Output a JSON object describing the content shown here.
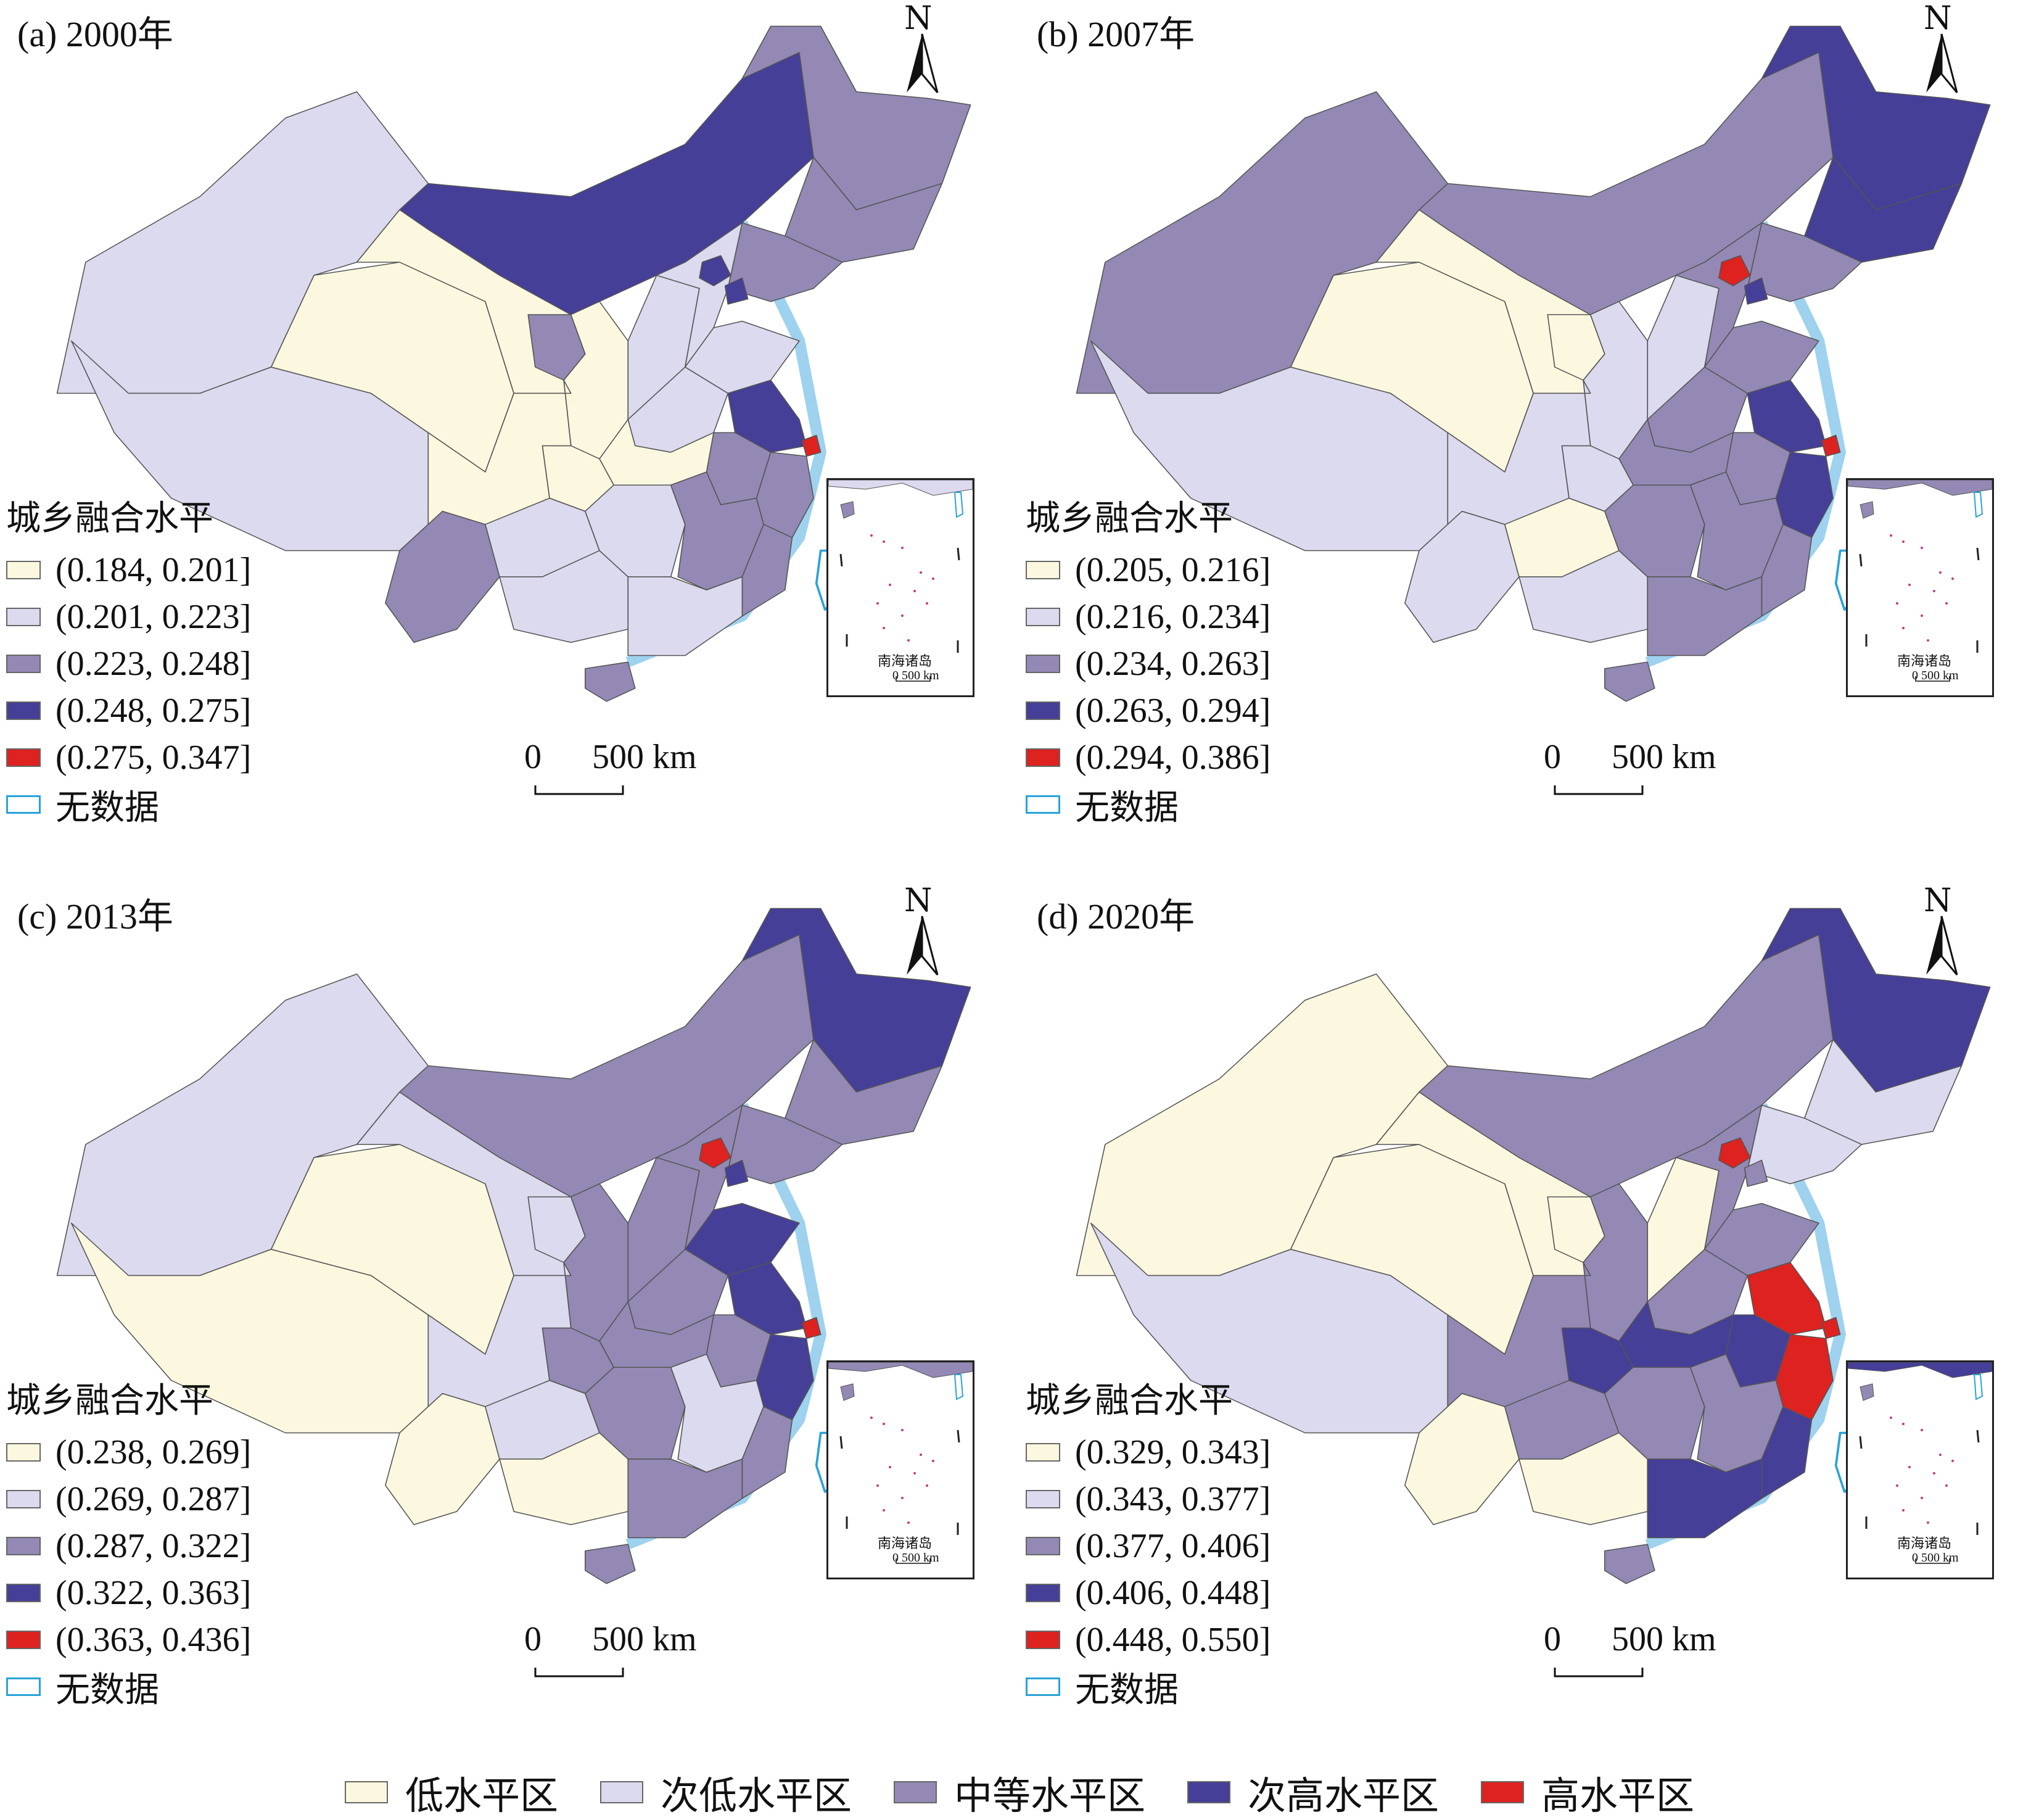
{
  "colors": {
    "low": "#fcf8df",
    "sublow": "#dcdaee",
    "medium": "#9389b4",
    "subhigh": "#453f98",
    "high": "#dd2220",
    "nodata_border": "#29a3d8",
    "border": "#555555"
  },
  "compass": {
    "letter": "N"
  },
  "scale": {
    "zero": "0",
    "dist": "500 km"
  },
  "inset": {
    "label": "南海诸岛",
    "zero": "0",
    "dist": "500 km"
  },
  "panels": [
    {
      "title": "(a) 2000年",
      "legend_title": "城乡融合水平",
      "classes": [
        "(0.184, 0.201]",
        "(0.201, 0.223]",
        "(0.223, 0.248]",
        "(0.248, 0.275]",
        "(0.275, 0.347]"
      ],
      "nodata": "无数据",
      "fills": {
        "xinjiang": "sublow",
        "xizang": "sublow",
        "qinghai": "low",
        "gansu": "low",
        "neimenggu": "subhigh",
        "heilongjiang": "medium",
        "jilin": "medium",
        "liaoning": "medium",
        "sichuan": "low",
        "yunnan": "medium",
        "shaanxi": "low",
        "ningxia": "medium",
        "shanxi": "sublow",
        "hebei": "sublow",
        "beijing": "subhigh",
        "tianjin": "subhigh",
        "shandong": "sublow",
        "henan": "sublow",
        "jiangsu": "subhigh",
        "shanghai": "high",
        "anhui": "medium",
        "zhejiang": "medium",
        "hubei": "low",
        "chongqing": "low",
        "guizhou": "sublow",
        "hunan": "sublow",
        "jiangxi": "medium",
        "fujian": "medium",
        "guangxi": "sublow",
        "guangdong": "sublow",
        "hainan": "medium",
        "taiwan": "nodata"
      }
    },
    {
      "title": "(b) 2007年",
      "legend_title": "城乡融合水平",
      "classes": [
        "(0.205, 0.216]",
        "(0.216, 0.234]",
        "(0.234, 0.263]",
        "(0.263, 0.294]",
        "(0.294, 0.386]"
      ],
      "nodata": "无数据",
      "fills": {
        "xinjiang": "medium",
        "xizang": "sublow",
        "qinghai": "low",
        "gansu": "low",
        "neimenggu": "medium",
        "heilongjiang": "subhigh",
        "jilin": "subhigh",
        "liaoning": "medium",
        "sichuan": "sublow",
        "yunnan": "sublow",
        "shaanxi": "sublow",
        "ningxia": "low",
        "shanxi": "sublow",
        "hebei": "medium",
        "beijing": "high",
        "tianjin": "subhigh",
        "shandong": "medium",
        "henan": "medium",
        "jiangsu": "subhigh",
        "shanghai": "high",
        "anhui": "medium",
        "zhejiang": "subhigh",
        "hubei": "medium",
        "chongqing": "sublow",
        "guizhou": "low",
        "hunan": "medium",
        "jiangxi": "medium",
        "fujian": "medium",
        "guangxi": "sublow",
        "guangdong": "medium",
        "hainan": "medium",
        "taiwan": "nodata"
      }
    },
    {
      "title": "(c) 2013年",
      "legend_title": "城乡融合水平",
      "classes": [
        "(0.238, 0.269]",
        "(0.269, 0.287]",
        "(0.287, 0.322]",
        "(0.322, 0.363]",
        "(0.363, 0.436]"
      ],
      "nodata": "无数据",
      "fills": {
        "xinjiang": "sublow",
        "xizang": "low",
        "qinghai": "low",
        "gansu": "sublow",
        "neimenggu": "medium",
        "heilongjiang": "subhigh",
        "jilin": "medium",
        "liaoning": "medium",
        "sichuan": "sublow",
        "yunnan": "low",
        "shaanxi": "medium",
        "ningxia": "sublow",
        "shanxi": "medium",
        "hebei": "medium",
        "beijing": "high",
        "tianjin": "subhigh",
        "shandong": "subhigh",
        "henan": "medium",
        "jiangsu": "subhigh",
        "shanghai": "high",
        "anhui": "medium",
        "zhejiang": "subhigh",
        "hubei": "medium",
        "chongqing": "medium",
        "guizhou": "sublow",
        "hunan": "medium",
        "jiangxi": "sublow",
        "fujian": "medium",
        "guangxi": "low",
        "guangdong": "medium",
        "hainan": "medium",
        "taiwan": "nodata"
      }
    },
    {
      "title": "(d) 2020年",
      "legend_title": "城乡融合水平",
      "classes": [
        "(0.329, 0.343]",
        "(0.343, 0.377]",
        "(0.377, 0.406]",
        "(0.406, 0.448]",
        "(0.448, 0.550]"
      ],
      "nodata": "无数据",
      "fills": {
        "xinjiang": "low",
        "xizang": "sublow",
        "qinghai": "low",
        "gansu": "low",
        "neimenggu": "medium",
        "heilongjiang": "subhigh",
        "jilin": "sublow",
        "liaoning": "sublow",
        "sichuan": "medium",
        "yunnan": "low",
        "shaanxi": "medium",
        "ningxia": "low",
        "shanxi": "low",
        "hebei": "medium",
        "beijing": "high",
        "tianjin": "medium",
        "shandong": "medium",
        "henan": "medium",
        "jiangsu": "high",
        "shanghai": "high",
        "anhui": "subhigh",
        "zhejiang": "high",
        "hubei": "subhigh",
        "chongqing": "subhigh",
        "guizhou": "medium",
        "hunan": "medium",
        "jiangxi": "medium",
        "fujian": "subhigh",
        "guangxi": "low",
        "guangdong": "subhigh",
        "hainan": "medium",
        "taiwan": "nodata"
      }
    }
  ],
  "bottom_legend": [
    {
      "label": "低水平区",
      "key": "low"
    },
    {
      "label": "次低水平区",
      "key": "sublow"
    },
    {
      "label": "中等水平区",
      "key": "medium"
    },
    {
      "label": "次高水平区",
      "key": "subhigh"
    },
    {
      "label": "高水平区",
      "key": "high"
    }
  ]
}
